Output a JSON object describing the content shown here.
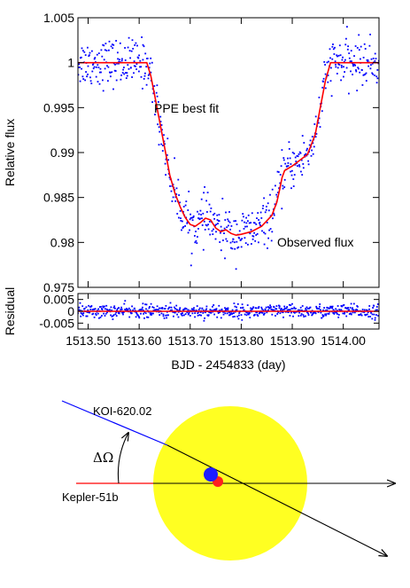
{
  "colors": {
    "observed": "#0000ff",
    "fit": "#ff0000",
    "star": "#ffff22",
    "koi_line": "#0000ff",
    "kepler_line": "#ff0000",
    "planet_koi": "#1c1cff",
    "planet_kepler": "#ff2020",
    "axes": "#000000"
  },
  "chart_data": [
    {
      "type": "scatter",
      "xlabel": "BJD - 2454833 (day)",
      "ylabel": "Relative flux",
      "xlim": [
        1513.48,
        1514.07
      ],
      "ylim": [
        0.975,
        1.005
      ],
      "x_ticks": [
        "1513.50",
        "1513.60",
        "1513.70",
        "1513.80",
        "1513.90",
        "1514.00"
      ],
      "y_ticks": [
        "0.975",
        "0.98",
        "0.985",
        "0.99",
        "0.995",
        "1",
        "1.005"
      ],
      "grid": false,
      "annotations": [
        {
          "text": "PPE best fit",
          "color": "#ff0000"
        },
        {
          "text": "Observed flux",
          "color": "#0000ff"
        }
      ],
      "series": [
        {
          "name": "PPE best fit",
          "style": "line",
          "x": [
            1513.48,
            1513.545,
            1513.6,
            1513.615,
            1513.623,
            1513.63,
            1513.64,
            1513.65,
            1513.66,
            1513.67,
            1513.68,
            1513.69,
            1513.7,
            1513.71,
            1513.72,
            1513.73,
            1513.74,
            1513.75,
            1513.76,
            1513.77,
            1513.78,
            1513.79,
            1513.8,
            1513.82,
            1513.84,
            1513.86,
            1513.87,
            1513.875,
            1513.88,
            1513.885,
            1513.9,
            1513.93,
            1513.945,
            1513.955,
            1513.965,
            1513.975,
            1513.99,
            1514.02,
            1514.07
          ],
          "y": [
            1.0,
            1.0,
            1.0,
            1.0,
            0.9985,
            0.9965,
            0.9935,
            0.9905,
            0.9875,
            0.9855,
            0.984,
            0.9828,
            0.982,
            0.9818,
            0.9822,
            0.9827,
            0.9825,
            0.9816,
            0.9812,
            0.9814,
            0.981,
            0.9808,
            0.9809,
            0.9812,
            0.9818,
            0.983,
            0.9845,
            0.9858,
            0.9872,
            0.988,
            0.9885,
            0.9898,
            0.992,
            0.995,
            0.998,
            1.0,
            1.0,
            1.0,
            1.0
          ]
        },
        {
          "name": "Observed flux",
          "style": "points",
          "scatter_sigma": 0.0013,
          "n_points": 620,
          "follows": "PPE best fit"
        }
      ]
    },
    {
      "type": "scatter",
      "xlabel": "BJD - 2454833 (day)",
      "ylabel": "Residual",
      "xlim": [
        1513.48,
        1514.07
      ],
      "ylim": [
        -0.0075,
        0.0075
      ],
      "x_ticks": [
        "1513.50",
        "1513.60",
        "1513.70",
        "1513.80",
        "1513.90",
        "1514.00"
      ],
      "y_ticks": [
        "0.005",
        "0",
        "-0.005"
      ],
      "series": [
        {
          "name": "Residual",
          "style": "points",
          "scatter_sigma": 0.0014,
          "n_points": 620
        },
        {
          "name": "Zero",
          "style": "line",
          "x": [
            1513.48,
            1514.07
          ],
          "y": [
            0,
            0
          ]
        }
      ]
    }
  ],
  "diagram": {
    "koi_label": "KOI-620.02",
    "kepler_label": "Kepler-51b",
    "angle_label": "ΔΩ"
  }
}
